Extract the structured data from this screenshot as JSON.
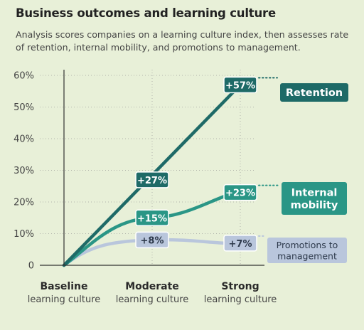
{
  "title": "Business outcomes and learning culture",
  "subtitle": "Analysis scores companies on a learning culture index, then assesses rate of retention, internal mobility, and promotions to management.",
  "colors": {
    "background": "#e8f0d8",
    "retention": "#1e6a67",
    "internal_mobility": "#2a9686",
    "promotions": "#b9c6dc",
    "axis": "#333333",
    "grid": "#8f8f8f"
  },
  "chart_data": {
    "type": "line",
    "categories": [
      {
        "name": "Baseline",
        "sub": "learning culture"
      },
      {
        "name": "Moderate",
        "sub": "learning culture"
      },
      {
        "name": "Strong",
        "sub": "learning culture"
      }
    ],
    "yticks": [
      "0",
      "10%",
      "20%",
      "30%",
      "40%",
      "50%",
      "60%"
    ],
    "ylim": [
      0,
      60
    ],
    "series": [
      {
        "key": "retention",
        "name": "Retention",
        "values": [
          0,
          27,
          57
        ],
        "labels": [
          "",
          "+27%",
          "+57%"
        ]
      },
      {
        "key": "internal_mobility",
        "name": "Internal mobility",
        "values": [
          0,
          15,
          23
        ],
        "labels": [
          "",
          "+15%",
          "+23%"
        ]
      },
      {
        "key": "promotions",
        "name": "Promotions to management",
        "values": [
          0,
          8,
          7
        ],
        "labels": [
          "",
          "+8%",
          "+7%"
        ]
      }
    ]
  }
}
